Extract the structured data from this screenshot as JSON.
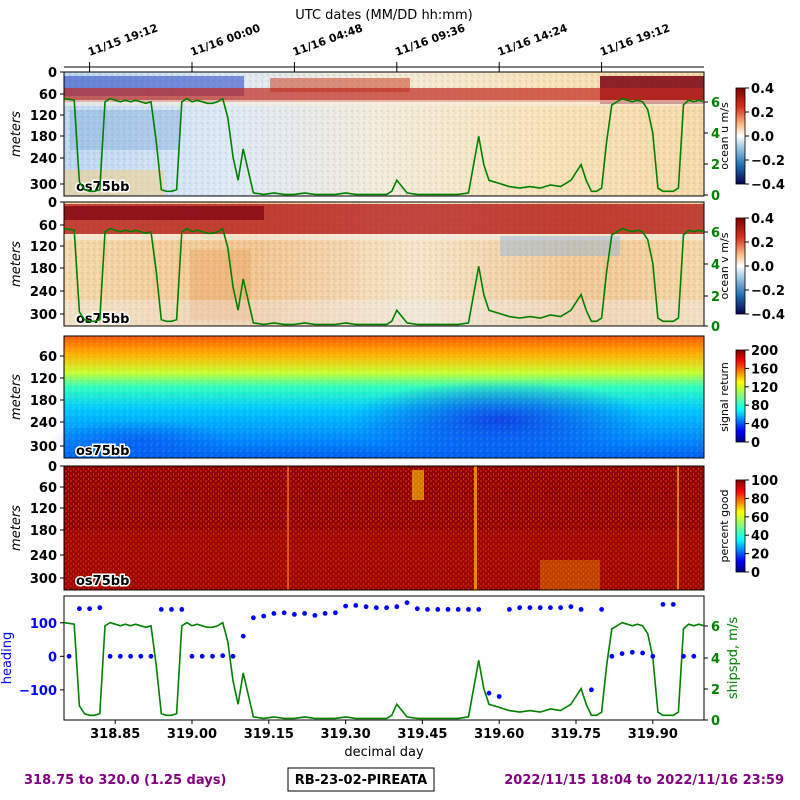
{
  "top_axis": {
    "title": "UTC dates (MM/DD hh:mm)",
    "labels": [
      "11/15 19:12",
      "11/16 00:00",
      "11/16 04:48",
      "11/16 09:36",
      "11/16 14:24",
      "11/16 19:12"
    ],
    "days": [
      318.8,
      319.0,
      319.2,
      319.4,
      319.6,
      319.8
    ]
  },
  "bottom_axis": {
    "label": "decimal day",
    "ticks": [
      "318.85",
      "319.00",
      "319.15",
      "319.30",
      "319.45",
      "319.60",
      "319.75",
      "319.90"
    ],
    "tick_values": [
      318.85,
      319.0,
      319.15,
      319.3,
      319.45,
      319.6,
      319.75,
      319.9
    ]
  },
  "footer": {
    "left": "318.75 to 320.0 (1.25 days)",
    "center": "RB-23-02-PIREATA",
    "right": "2022/11/15 18:04 to 2022/11/16 23:59"
  },
  "colors": {
    "purple": "#800080",
    "green": "#008000",
    "blue": "#0000ff"
  },
  "chart_data": [
    {
      "type": "heatmap",
      "name": "ocean u",
      "ylabel": "meters",
      "yticks": [
        "0",
        "60",
        "120",
        "180",
        "240",
        "300"
      ],
      "inset_label": "os75bb",
      "colorbar_label": "ocean u m/s",
      "colorbar_ticks": [
        "0.4",
        "0.2",
        "0.0",
        "−0.2",
        "−0.4"
      ],
      "colormap": "diverging blue-white-red",
      "right_axis_ticks": [
        "6",
        "4",
        "2",
        "0"
      ]
    },
    {
      "type": "heatmap",
      "name": "ocean v",
      "ylabel": "meters",
      "yticks": [
        "0",
        "60",
        "120",
        "180",
        "240",
        "300"
      ],
      "inset_label": "os75bb",
      "colorbar_label": "ocean v m/s",
      "colorbar_ticks": [
        "0.4",
        "0.2",
        "0.0",
        "−0.2",
        "−0.4"
      ],
      "colormap": "diverging blue-white-red",
      "right_axis_ticks": [
        "6",
        "4",
        "2",
        "0"
      ]
    },
    {
      "type": "heatmap",
      "name": "signal return",
      "ylabel": "meters",
      "yticks": [
        "60",
        "120",
        "180",
        "240",
        "300"
      ],
      "inset_label": "os75bb",
      "colorbar_label": "signal return",
      "colorbar_ticks": [
        "200",
        "160",
        "120",
        "80",
        "40",
        "0"
      ],
      "colormap": "jet"
    },
    {
      "type": "heatmap",
      "name": "percent good",
      "ylabel": "meters",
      "yticks": [
        "0",
        "60",
        "120",
        "180",
        "240",
        "300"
      ],
      "inset_label": "os75bb",
      "colorbar_label": "percent good",
      "colorbar_ticks": [
        "100",
        "80",
        "60",
        "40",
        "20",
        "0"
      ],
      "colormap": "jet"
    },
    {
      "type": "line",
      "name": "heading and ship speed",
      "ylabel_left": "heading",
      "ylabel_right": "shipspd, m/s",
      "yticks_left": [
        "100",
        "0",
        "−100"
      ],
      "yticks_left_values": [
        100,
        0,
        -100
      ],
      "yticks_right": [
        "6",
        "4",
        "2",
        "0"
      ],
      "ylim_left": [
        -190,
        180
      ],
      "ylim_right": [
        0,
        7.5
      ],
      "series": [
        {
          "name": "heading",
          "style": "dots",
          "x": [
            318.76,
            318.78,
            318.8,
            318.82,
            318.84,
            318.86,
            318.88,
            318.9,
            318.92,
            318.94,
            318.96,
            318.98,
            319.0,
            319.02,
            319.04,
            319.06,
            319.08,
            319.1,
            319.12,
            319.14,
            319.16,
            319.18,
            319.2,
            319.22,
            319.24,
            319.26,
            319.28,
            319.3,
            319.32,
            319.34,
            319.36,
            319.38,
            319.4,
            319.42,
            319.44,
            319.46,
            319.48,
            319.5,
            319.52,
            319.54,
            319.56,
            319.58,
            319.6,
            319.62,
            319.64,
            319.66,
            319.68,
            319.7,
            319.72,
            319.74,
            319.76,
            319.78,
            319.8,
            319.82,
            319.84,
            319.86,
            319.88,
            319.9,
            319.92,
            319.94,
            319.96,
            319.98
          ],
          "y": [
            0,
            142,
            142,
            145,
            0,
            0,
            0,
            0,
            0,
            140,
            140,
            140,
            0,
            0,
            0,
            2,
            0,
            60,
            115,
            120,
            128,
            130,
            125,
            128,
            122,
            128,
            130,
            150,
            152,
            148,
            145,
            145,
            148,
            160,
            142,
            140,
            140,
            140,
            140,
            140,
            140,
            -110,
            -120,
            140,
            145,
            145,
            145,
            145,
            145,
            148,
            140,
            -100,
            140,
            0,
            8,
            12,
            10,
            0,
            155,
            155,
            0,
            0
          ]
        },
        {
          "name": "ship speed",
          "style": "line",
          "x": [
            318.75,
            318.77,
            318.78,
            318.79,
            318.8,
            318.81,
            318.82,
            318.83,
            318.84,
            318.85,
            318.86,
            318.87,
            318.88,
            318.89,
            318.9,
            318.91,
            318.92,
            318.93,
            318.94,
            318.95,
            318.96,
            318.97,
            318.98,
            318.99,
            319.0,
            319.01,
            319.02,
            319.03,
            319.04,
            319.05,
            319.06,
            319.07,
            319.08,
            319.09,
            319.1,
            319.12,
            319.14,
            319.16,
            319.18,
            319.2,
            319.22,
            319.24,
            319.26,
            319.28,
            319.3,
            319.32,
            319.34,
            319.36,
            319.38,
            319.39,
            319.4,
            319.42,
            319.44,
            319.46,
            319.48,
            319.5,
            319.52,
            319.54,
            319.56,
            319.57,
            319.58,
            319.6,
            319.62,
            319.64,
            319.66,
            319.68,
            319.7,
            319.72,
            319.74,
            319.76,
            319.77,
            319.78,
            319.79,
            319.8,
            319.81,
            319.82,
            319.83,
            319.84,
            319.85,
            319.86,
            319.87,
            319.88,
            319.89,
            319.9,
            319.91,
            319.92,
            319.93,
            319.94,
            319.95,
            319.96,
            319.97,
            319.98,
            319.99,
            320.0
          ],
          "y": [
            6.2,
            6.1,
            0.9,
            0.4,
            0.3,
            0.3,
            0.4,
            6.0,
            6.2,
            6.1,
            6.0,
            6.1,
            6.0,
            6.1,
            6.0,
            5.9,
            6.0,
            3.5,
            0.4,
            0.3,
            0.3,
            0.4,
            6.0,
            6.2,
            6.0,
            6.1,
            6.0,
            5.9,
            5.9,
            6.0,
            6.2,
            5.0,
            2.5,
            1.0,
            3.0,
            0.2,
            0.1,
            0.2,
            0.1,
            0.1,
            0.2,
            0.1,
            0.1,
            0.1,
            0.2,
            0.1,
            0.1,
            0.1,
            0.1,
            0.3,
            1.0,
            0.2,
            0.1,
            0.1,
            0.1,
            0.1,
            0.1,
            0.2,
            3.8,
            2.0,
            1.0,
            0.8,
            0.6,
            0.5,
            0.6,
            0.5,
            0.7,
            0.6,
            1.0,
            2.0,
            1.0,
            0.3,
            0.3,
            0.5,
            3.5,
            5.8,
            6.0,
            6.2,
            6.1,
            6.0,
            6.1,
            6.0,
            5.5,
            4.0,
            0.5,
            0.3,
            0.3,
            0.3,
            0.5,
            5.8,
            6.1,
            6.0,
            6.1,
            6.0
          ]
        }
      ]
    }
  ]
}
